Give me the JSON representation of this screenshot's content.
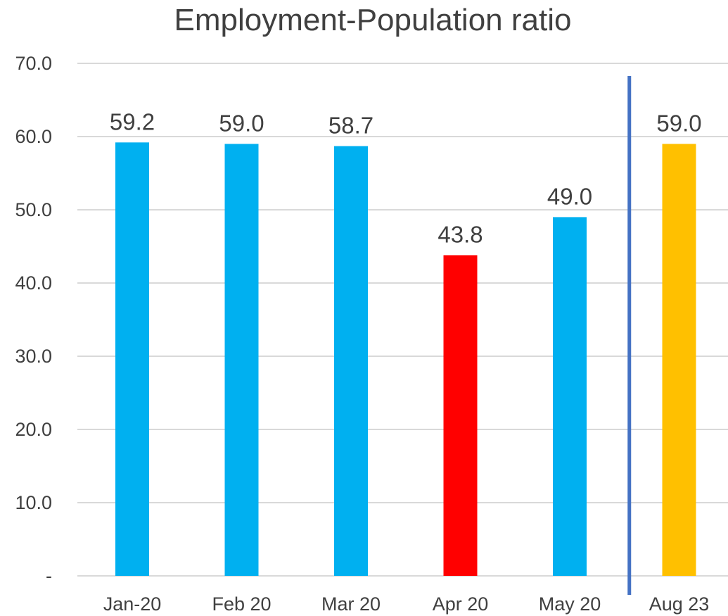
{
  "chart_data": {
    "type": "bar",
    "title": "Employment-Population ratio",
    "xlabel": "",
    "ylabel": "",
    "ylim": [
      0,
      70
    ],
    "y_ticks": [
      "-",
      "10.0",
      "20.0",
      "30.0",
      "40.0",
      "50.0",
      "60.0",
      "70.0"
    ],
    "categories": [
      "Jan-20",
      "Feb 20",
      "Mar 20",
      "Apr 20",
      "May 20",
      "Aug 23"
    ],
    "values": [
      59.2,
      59.0,
      58.7,
      43.8,
      49.0,
      59.0
    ],
    "data_labels": [
      "59.2",
      "59.0",
      "58.7",
      "43.8",
      "49.0",
      "59.0"
    ],
    "bar_colors": [
      "#00B0F0",
      "#00B0F0",
      "#00B0F0",
      "#FF0000",
      "#00B0F0",
      "#FFC000"
    ],
    "separator_after_category": "May 20",
    "separator_color": "#4472C4",
    "gridline_color": "#D9D9D9",
    "grid": true,
    "legend": "none"
  }
}
